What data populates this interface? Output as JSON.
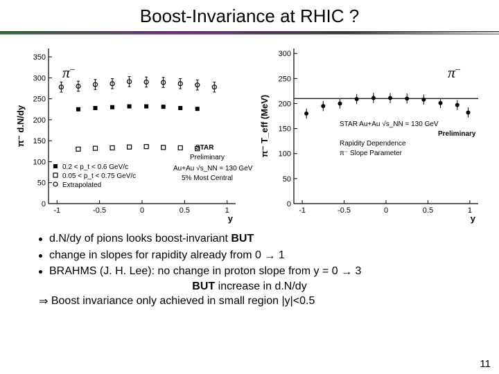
{
  "title": "Boost-Invariance at RHIC ?",
  "pi_label": "π",
  "pi_sup": "–",
  "arrow": "→",
  "implies": "⇒",
  "bullets": {
    "b1_a": "d.N/dy of pions looks boost-invariant ",
    "b1_b": "BUT",
    "b2_a": "change in slopes for rapidity already from 0 ",
    "b2_b": " 1",
    "b3_a": "BRAHMS (J. H. Lee): no change in proton slope from y = 0 ",
    "b3_b": " 3"
  },
  "center_a": "BUT",
  "center_b": " increase in d.N/dy",
  "conclusion": " Boost invariance only achieved in small region |y|<0.5",
  "page_number": "11",
  "chart_left": {
    "ylabel": "π⁻ d.N/dy",
    "xlabel": "y",
    "xlim": [
      -1.1,
      1.1
    ],
    "xticks": [
      -1,
      -0.5,
      0,
      0.5,
      1
    ],
    "ylim": [
      0,
      370
    ],
    "yticks": [
      0,
      50,
      100,
      150,
      200,
      250,
      300,
      350
    ],
    "series_top": {
      "marker": "open-circle",
      "color": "#000000",
      "pts": [
        [
          -0.95,
          278
        ],
        [
          -0.75,
          280
        ],
        [
          -0.55,
          284
        ],
        [
          -0.35,
          286
        ],
        [
          -0.15,
          291
        ],
        [
          0.05,
          290
        ],
        [
          0.25,
          289
        ],
        [
          0.45,
          286
        ],
        [
          0.65,
          283
        ],
        [
          0.85,
          278
        ]
      ],
      "err": 12
    },
    "series_mid": {
      "marker": "filled-square",
      "color": "#000000",
      "pts": [
        [
          -0.75,
          225
        ],
        [
          -0.55,
          228
        ],
        [
          -0.35,
          230
        ],
        [
          -0.15,
          232
        ],
        [
          0.05,
          232
        ],
        [
          0.25,
          231
        ],
        [
          0.45,
          228
        ],
        [
          0.65,
          226
        ]
      ]
    },
    "series_low": {
      "marker": "open-square",
      "color": "#000000",
      "pts": [
        [
          -0.75,
          130
        ],
        [
          -0.55,
          132
        ],
        [
          -0.35,
          133
        ],
        [
          -0.15,
          135
        ],
        [
          0.05,
          136
        ],
        [
          0.25,
          134
        ],
        [
          0.45,
          133
        ],
        [
          0.65,
          131
        ]
      ]
    },
    "legend": [
      {
        "marker": "filled-square",
        "label": "0.2 < p_t < 0.6 GeV/c"
      },
      {
        "marker": "open-square",
        "label": "0.05 < p_t < 0.75 GeV/c"
      },
      {
        "marker": "open-circle",
        "label": "Extrapolated"
      }
    ],
    "annot1_bold": "STAR",
    "annot1": "Preliminary",
    "annot2": "Au+Au √s_NN = 130 GeV",
    "annot3": "5% Most Central"
  },
  "chart_right": {
    "ylabel": "π⁻ T_eff (MeV)",
    "xlabel": "y",
    "xlim": [
      -1.1,
      1.1
    ],
    "xticks": [
      -1,
      -0.5,
      0,
      0.5,
      1
    ],
    "ylim": [
      0,
      310
    ],
    "yticks": [
      0,
      50,
      100,
      150,
      200,
      250,
      300
    ],
    "hline": 210,
    "series": {
      "marker": "filled-circle",
      "color": "#000000",
      "pts": [
        [
          -0.95,
          180
        ],
        [
          -0.75,
          195
        ],
        [
          -0.55,
          200
        ],
        [
          -0.35,
          209
        ],
        [
          -0.15,
          211
        ],
        [
          0.05,
          211
        ],
        [
          0.25,
          210
        ],
        [
          0.45,
          208
        ],
        [
          0.65,
          201
        ],
        [
          0.85,
          197
        ],
        [
          0.98,
          182
        ]
      ],
      "err": 10
    },
    "annot1": "STAR Au+Au √s_NN = 130 GeV",
    "annot1b_bold": "Preliminary",
    "annot2": "Rapidity Dependence",
    "annot3": "π⁻ Slope Parameter"
  },
  "colors": {
    "axis": "#000000",
    "grid": "#000000"
  }
}
